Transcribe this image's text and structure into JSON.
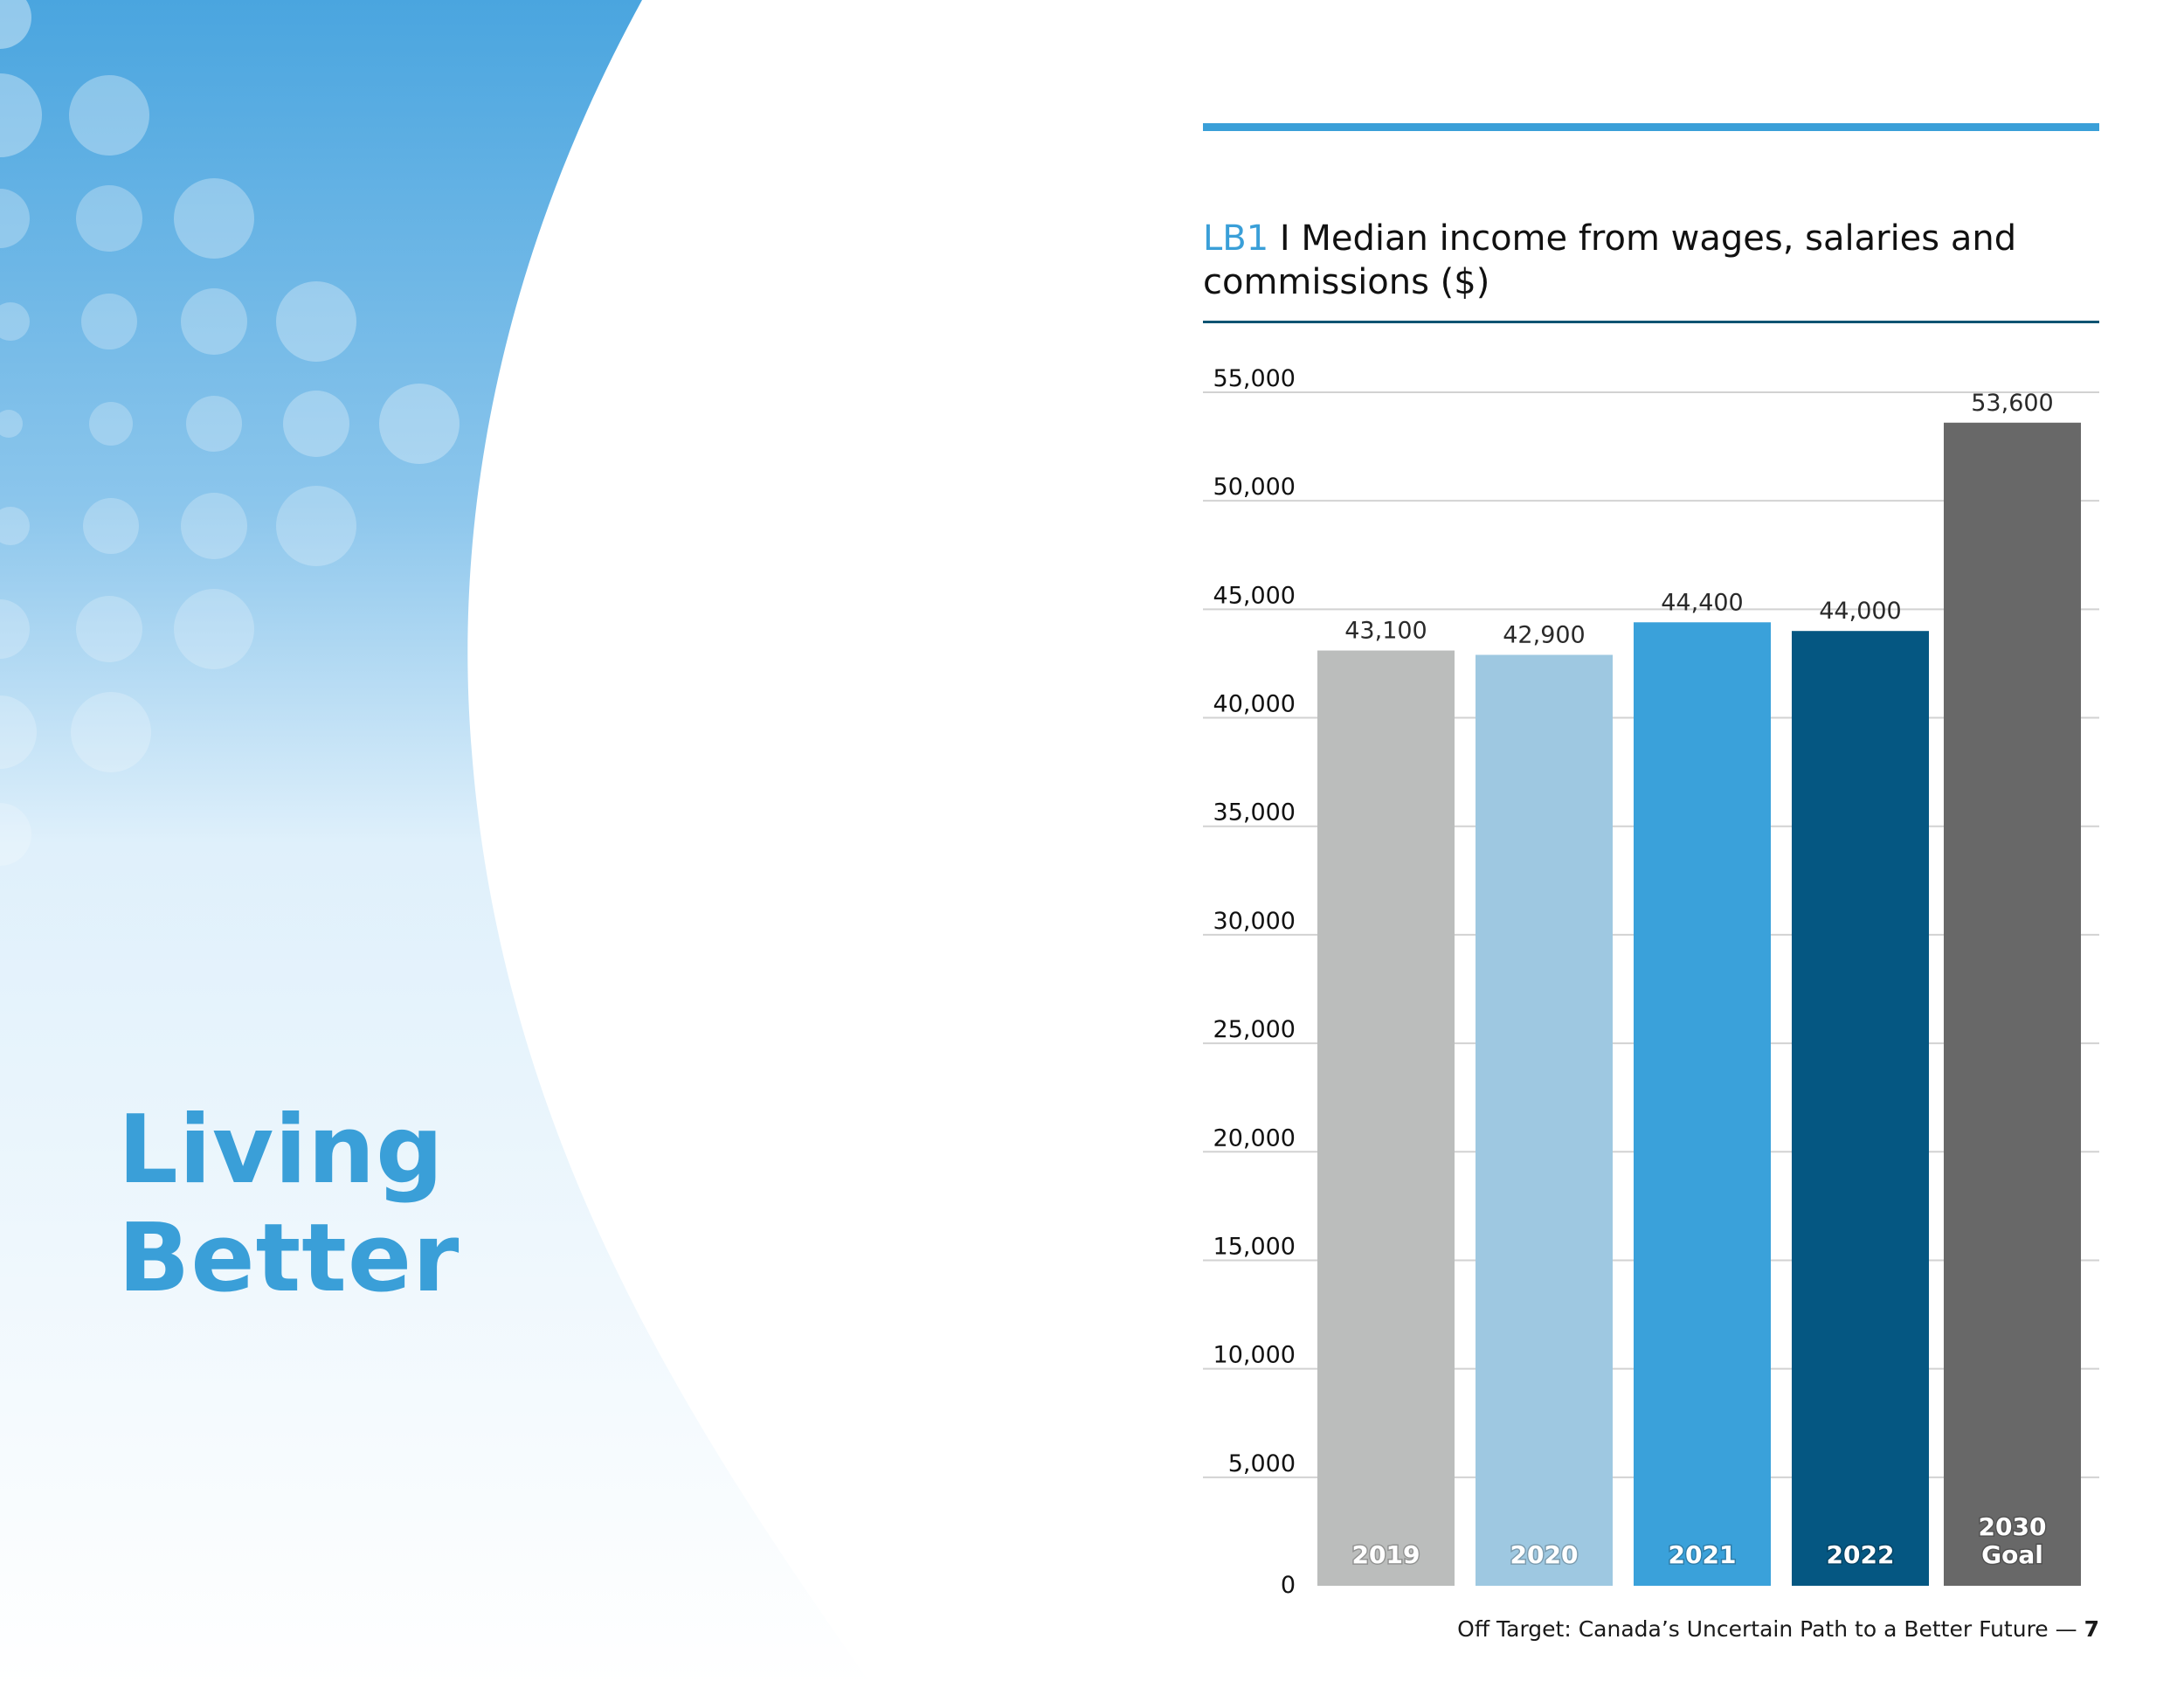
{
  "section": {
    "title_lines": [
      "Living",
      "Better"
    ]
  },
  "chart_heading": {
    "code": "LB1",
    "separator": " I ",
    "text": "Median income from wages, salaries and commissions ($)"
  },
  "footer": {
    "text": "Off Target: Canada’s Uncertain Path to a Better Future —",
    "page": "7"
  },
  "colors": {
    "accent": "#3a9fd8",
    "rule_dark": "#0c5472"
  },
  "chart_data": {
    "type": "bar",
    "categories": [
      "2019",
      "2020",
      "2021",
      "2022",
      "2030\nGoal"
    ],
    "values": [
      43100,
      42900,
      44400,
      44000,
      53600
    ],
    "data_labels": [
      "43,100",
      "42,900",
      "44,400",
      "44,000",
      "53,600"
    ],
    "bar_colors": [
      "#bbbdbc",
      "#9ec8e1",
      "#3aa1da",
      "#055782",
      "#686868"
    ],
    "y_ticks": [
      0,
      5000,
      10000,
      15000,
      20000,
      25000,
      30000,
      35000,
      40000,
      45000,
      50000,
      55000
    ],
    "y_tick_labels": [
      "0",
      "5,000",
      "10,000",
      "15,000",
      "20,000",
      "25,000",
      "30,000",
      "35,000",
      "40,000",
      "45,000",
      "50,000",
      "55,000"
    ],
    "ylim": [
      0,
      55000
    ],
    "grid": true,
    "legend": "none",
    "title": "LB1 I Median income from wages, salaries and commissions ($)",
    "xlabel": "",
    "ylabel": ""
  }
}
